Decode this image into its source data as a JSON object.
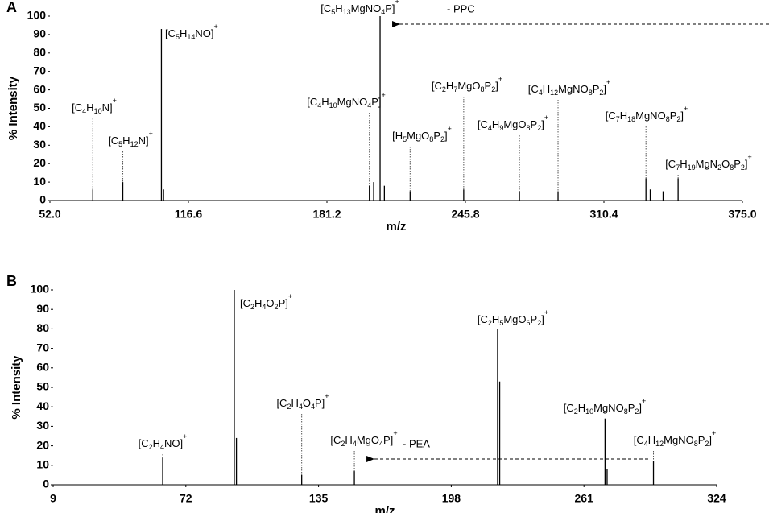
{
  "chart_data": [
    {
      "type": "stem",
      "title": "A",
      "xlabel": "m/z",
      "ylabel": "% Intensity",
      "color": "#000000",
      "xlim": [
        52,
        375
      ],
      "xticks": [
        {
          "value": 52,
          "label": "52.0"
        },
        116.6,
        181.2,
        245.8,
        310.4,
        {
          "value": 375,
          "label": "375.0"
        }
      ],
      "ylim": [
        0,
        100
      ],
      "yticks": [
        0,
        10,
        20,
        30,
        40,
        50,
        60,
        70,
        80,
        90,
        100
      ],
      "x": [
        72,
        86,
        104,
        105,
        201,
        203,
        206,
        208,
        220,
        245,
        271,
        289,
        330,
        332,
        338,
        345
      ],
      "values": [
        6,
        10,
        93,
        6,
        8,
        10,
        100,
        8,
        5,
        6,
        5,
        5,
        12,
        6,
        5,
        12
      ],
      "labels": [
        "[C4H10N]+",
        "[C5H12N]+",
        "[C5H14NO]+",
        null,
        "[C4H10MgNO4P]+",
        null,
        "[C5H13MgNO4P]+",
        null,
        "[H5MgO8P2]+",
        "[C2H7MgO8P2]+",
        "[C4H9MgO8P2]+",
        "[C4H12MgNO8P2]+",
        "[C7H18MgNO8P2]+",
        null,
        null,
        "[C7H19MgN2O8P2]+"
      ],
      "annotation": "- PPC"
    },
    {
      "type": "stem",
      "title": "B",
      "xlabel": "m/z",
      "ylabel": "% Intensity",
      "color": "#000000",
      "xlim": [
        9,
        324
      ],
      "xticks": [
        9,
        72,
        135,
        198,
        261,
        324
      ],
      "ylim": [
        0,
        100
      ],
      "yticks": [
        0,
        10,
        20,
        30,
        40,
        50,
        60,
        70,
        80,
        90,
        100
      ],
      "x": [
        61,
        95,
        96,
        127,
        152,
        220,
        221,
        271,
        272,
        294
      ],
      "values": [
        14,
        100,
        24,
        5,
        7,
        80,
        53,
        34,
        8,
        12
      ],
      "labels": [
        "[C2H4NO]+",
        "[C2H4O2P]+",
        null,
        "[C2H4O4P]+",
        "[C2H4MgO4P]+",
        "[C2H5MgO6P2]+",
        null,
        "[C2H10MgNO8P2]+",
        null,
        "[C4H12MgNO8P2]+"
      ],
      "annotation": "- PEA"
    }
  ]
}
